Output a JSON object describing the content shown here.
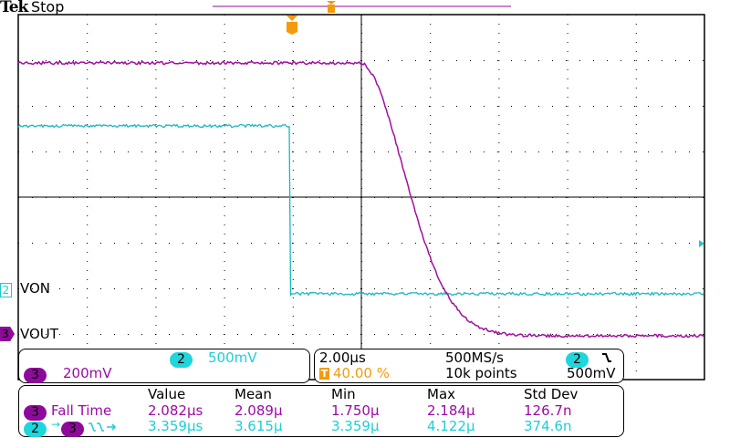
{
  "header": {
    "brand": "Tek",
    "status": "Stop"
  },
  "colors": {
    "ch2": "#1fc8cf",
    "ch3": "#a0109f",
    "trigger": "#f39b0a"
  },
  "channels": {
    "ch2": {
      "number": "2",
      "label": "VON",
      "scale": "500mV"
    },
    "ch3": {
      "number": "3",
      "label": "VOUT",
      "scale": "200mV"
    }
  },
  "timebase": {
    "scale": "2.00µs",
    "sample_rate": "500MS/s",
    "trigger_position": "40.00 %",
    "record_length": "10k points",
    "trigger_source": "2",
    "trigger_slope": "falling-edge-icon",
    "trigger_level": "500mV",
    "trigger_icon": "T"
  },
  "measurements": {
    "headers": [
      "Value",
      "Mean",
      "Min",
      "Max",
      "Std Dev"
    ],
    "rows": [
      {
        "source": "3",
        "name": "Fall Time",
        "values": [
          "2.082µs",
          "2.089µ",
          "1.750µ",
          "2.184µ",
          "126.7n"
        ]
      },
      {
        "source": "2",
        "target": "3",
        "name": "delay-falling-icon",
        "values": [
          "3.359µs",
          "3.615µ",
          "3.359µ",
          "4.122µ",
          "374.6n"
        ]
      }
    ]
  }
}
